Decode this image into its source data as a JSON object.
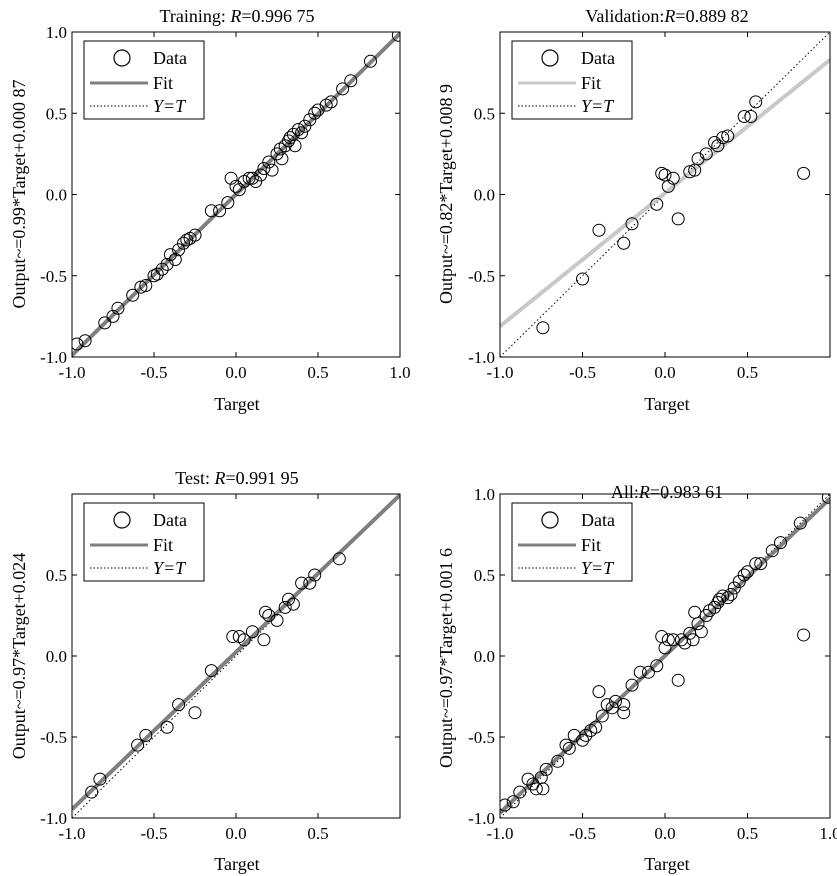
{
  "figure": {
    "xlabel": "Target"
  },
  "legend": {
    "data": "Data",
    "fit": "Fit",
    "yt": "Y=T"
  },
  "chart_data": [
    {
      "type": "scatter",
      "title_prefix": "Training: ",
      "title_r": "R",
      "title_value": "=0.996 75",
      "xlabel": "Target",
      "ylabel": "Output~=0.99*Target+0.000 87",
      "xlim": [
        -1.0,
        1.0
      ],
      "ylim": [
        -1.0,
        1.0
      ],
      "xticks": [
        "-1.0",
        "-0.5",
        "0.0",
        "0.5",
        "1.0"
      ],
      "yticks": [
        "-1.0",
        "-0.5",
        "0.0",
        "0.5",
        "1.0"
      ],
      "xtick_values": [
        -1.0,
        -0.5,
        0.0,
        0.5,
        1.0
      ],
      "ytick_values": [
        -1.0,
        -0.5,
        0.0,
        0.5,
        1.0
      ],
      "fit": {
        "slope": 0.99,
        "intercept": 0.00087,
        "color": "#7f7f7f"
      },
      "legend_position": "top-left",
      "grid": false,
      "points": [
        [
          -0.97,
          -0.92
        ],
        [
          -0.92,
          -0.9
        ],
        [
          -0.8,
          -0.79
        ],
        [
          -0.75,
          -0.75
        ],
        [
          -0.72,
          -0.7
        ],
        [
          -0.63,
          -0.62
        ],
        [
          -0.58,
          -0.57
        ],
        [
          -0.55,
          -0.56
        ],
        [
          -0.5,
          -0.5
        ],
        [
          -0.48,
          -0.49
        ],
        [
          -0.45,
          -0.46
        ],
        [
          -0.42,
          -0.43
        ],
        [
          -0.4,
          -0.37
        ],
        [
          -0.37,
          -0.4
        ],
        [
          -0.35,
          -0.34
        ],
        [
          -0.32,
          -0.3
        ],
        [
          -0.3,
          -0.28
        ],
        [
          -0.28,
          -0.27
        ],
        [
          -0.25,
          -0.25
        ],
        [
          -0.15,
          -0.1
        ],
        [
          -0.1,
          -0.1
        ],
        [
          -0.05,
          -0.05
        ],
        [
          -0.03,
          0.1
        ],
        [
          0.0,
          0.05
        ],
        [
          0.02,
          0.03
        ],
        [
          0.05,
          0.08
        ],
        [
          0.08,
          0.1
        ],
        [
          0.1,
          0.1
        ],
        [
          0.12,
          0.08
        ],
        [
          0.15,
          0.12
        ],
        [
          0.17,
          0.16
        ],
        [
          0.2,
          0.2
        ],
        [
          0.22,
          0.15
        ],
        [
          0.25,
          0.25
        ],
        [
          0.27,
          0.28
        ],
        [
          0.28,
          0.22
        ],
        [
          0.3,
          0.3
        ],
        [
          0.32,
          0.33
        ],
        [
          0.33,
          0.35
        ],
        [
          0.35,
          0.37
        ],
        [
          0.36,
          0.3
        ],
        [
          0.38,
          0.4
        ],
        [
          0.4,
          0.38
        ],
        [
          0.42,
          0.42
        ],
        [
          0.45,
          0.46
        ],
        [
          0.48,
          0.5
        ],
        [
          0.5,
          0.52
        ],
        [
          0.55,
          0.55
        ],
        [
          0.58,
          0.57
        ],
        [
          0.65,
          0.65
        ],
        [
          0.7,
          0.7
        ],
        [
          0.82,
          0.82
        ],
        [
          0.99,
          0.98
        ]
      ]
    },
    {
      "type": "scatter",
      "title_prefix": "Validation:",
      "title_r": "R",
      "title_value": "=0.889 82",
      "xlabel": "Target",
      "ylabel": "Output~=0.82*Target+0.008 9",
      "xlim": [
        -1.0,
        1.0
      ],
      "ylim": [
        -1.0,
        1.0
      ],
      "xticks": [
        "-1.0",
        "-0.5",
        "0.0",
        "0.5"
      ],
      "yticks": [
        "-1.0",
        "-0.5",
        "0.0",
        "0.5"
      ],
      "xtick_values": [
        -1.0,
        -0.5,
        0.0,
        0.5
      ],
      "ytick_values": [
        -1.0,
        -0.5,
        0.0,
        0.5
      ],
      "fit": {
        "slope": 0.82,
        "intercept": 0.0089,
        "color": "#c8c8c8"
      },
      "legend_position": "top-left",
      "grid": false,
      "points": [
        [
          -0.74,
          -0.82
        ],
        [
          -0.5,
          -0.52
        ],
        [
          -0.4,
          -0.22
        ],
        [
          -0.25,
          -0.3
        ],
        [
          -0.2,
          -0.18
        ],
        [
          -0.05,
          -0.06
        ],
        [
          -0.02,
          0.13
        ],
        [
          0.0,
          0.12
        ],
        [
          0.02,
          0.05
        ],
        [
          0.05,
          0.1
        ],
        [
          0.08,
          -0.15
        ],
        [
          0.15,
          0.14
        ],
        [
          0.18,
          0.15
        ],
        [
          0.2,
          0.22
        ],
        [
          0.25,
          0.25
        ],
        [
          0.3,
          0.32
        ],
        [
          0.32,
          0.3
        ],
        [
          0.35,
          0.35
        ],
        [
          0.38,
          0.36
        ],
        [
          0.48,
          0.48
        ],
        [
          0.52,
          0.48
        ],
        [
          0.55,
          0.57
        ],
        [
          0.84,
          0.13
        ]
      ]
    },
    {
      "type": "scatter",
      "title_prefix": "Test: ",
      "title_r": "R",
      "title_value": "=0.991 95",
      "xlabel": "Target",
      "ylabel": "Output~=0.97*Target+0.024",
      "xlim": [
        -1.0,
        1.0
      ],
      "ylim": [
        -1.0,
        1.0
      ],
      "xticks": [
        "-1.0",
        "-0.5",
        "0.0",
        "0.5"
      ],
      "yticks": [
        "-1.0",
        "-0.5",
        "0.0",
        "0.5"
      ],
      "xtick_values": [
        -1.0,
        -0.5,
        0.0,
        0.5
      ],
      "ytick_values": [
        -1.0,
        -0.5,
        0.0,
        0.5
      ],
      "fit": {
        "slope": 0.97,
        "intercept": 0.024,
        "color": "#7f7f7f"
      },
      "legend_position": "top-left",
      "grid": false,
      "points": [
        [
          -0.88,
          -0.84
        ],
        [
          -0.83,
          -0.76
        ],
        [
          -0.6,
          -0.55
        ],
        [
          -0.55,
          -0.49
        ],
        [
          -0.42,
          -0.44
        ],
        [
          -0.35,
          -0.3
        ],
        [
          -0.25,
          -0.35
        ],
        [
          -0.15,
          -0.09
        ],
        [
          -0.02,
          0.12
        ],
        [
          0.02,
          0.12
        ],
        [
          0.05,
          0.1
        ],
        [
          0.1,
          0.15
        ],
        [
          0.17,
          0.1
        ],
        [
          0.18,
          0.27
        ],
        [
          0.2,
          0.25
        ],
        [
          0.25,
          0.22
        ],
        [
          0.3,
          0.3
        ],
        [
          0.32,
          0.35
        ],
        [
          0.35,
          0.32
        ],
        [
          0.4,
          0.45
        ],
        [
          0.45,
          0.45
        ],
        [
          0.48,
          0.5
        ],
        [
          0.63,
          0.6
        ]
      ]
    },
    {
      "type": "scatter",
      "title_prefix": "All:",
      "title_r": "R",
      "title_value": "=0.983 61",
      "xlabel": "Target",
      "ylabel": "Output~=0.97*Target+0.001 6",
      "xlim": [
        -1.0,
        1.0
      ],
      "ylim": [
        -1.0,
        1.0
      ],
      "xticks": [
        "-1.0",
        "-0.5",
        "0.0",
        "0.5",
        "1.0"
      ],
      "yticks": [
        "-1.0",
        "-0.5",
        "0.0",
        "0.5",
        "1.0"
      ],
      "xtick_values": [
        -1.0,
        -0.5,
        0.0,
        0.5,
        1.0
      ],
      "ytick_values": [
        -1.0,
        -0.5,
        0.0,
        0.5,
        1.0
      ],
      "fit": {
        "slope": 0.97,
        "intercept": 0.0016,
        "color": "#7f7f7f"
      },
      "legend_position": "top-left",
      "grid": false,
      "points": [
        [
          -0.97,
          -0.92
        ],
        [
          -0.92,
          -0.9
        ],
        [
          -0.88,
          -0.84
        ],
        [
          -0.83,
          -0.76
        ],
        [
          -0.8,
          -0.79
        ],
        [
          -0.78,
          -0.82
        ],
        [
          -0.75,
          -0.75
        ],
        [
          -0.74,
          -0.82
        ],
        [
          -0.72,
          -0.7
        ],
        [
          -0.65,
          -0.65
        ],
        [
          -0.6,
          -0.55
        ],
        [
          -0.58,
          -0.57
        ],
        [
          -0.55,
          -0.49
        ],
        [
          -0.5,
          -0.52
        ],
        [
          -0.48,
          -0.49
        ],
        [
          -0.45,
          -0.46
        ],
        [
          -0.42,
          -0.44
        ],
        [
          -0.4,
          -0.22
        ],
        [
          -0.38,
          -0.37
        ],
        [
          -0.35,
          -0.3
        ],
        [
          -0.32,
          -0.32
        ],
        [
          -0.3,
          -0.28
        ],
        [
          -0.25,
          -0.35
        ],
        [
          -0.25,
          -0.3
        ],
        [
          -0.2,
          -0.18
        ],
        [
          -0.15,
          -0.1
        ],
        [
          -0.1,
          -0.1
        ],
        [
          -0.05,
          -0.06
        ],
        [
          -0.02,
          0.12
        ],
        [
          0.0,
          0.05
        ],
        [
          0.02,
          0.1
        ],
        [
          0.05,
          0.1
        ],
        [
          0.08,
          -0.15
        ],
        [
          0.1,
          0.1
        ],
        [
          0.12,
          0.08
        ],
        [
          0.15,
          0.14
        ],
        [
          0.17,
          0.1
        ],
        [
          0.18,
          0.27
        ],
        [
          0.2,
          0.2
        ],
        [
          0.22,
          0.15
        ],
        [
          0.25,
          0.25
        ],
        [
          0.27,
          0.28
        ],
        [
          0.3,
          0.3
        ],
        [
          0.32,
          0.33
        ],
        [
          0.33,
          0.35
        ],
        [
          0.35,
          0.37
        ],
        [
          0.38,
          0.36
        ],
        [
          0.4,
          0.38
        ],
        [
          0.42,
          0.42
        ],
        [
          0.45,
          0.46
        ],
        [
          0.48,
          0.5
        ],
        [
          0.5,
          0.52
        ],
        [
          0.55,
          0.57
        ],
        [
          0.58,
          0.57
        ],
        [
          0.65,
          0.65
        ],
        [
          0.7,
          0.7
        ],
        [
          0.82,
          0.82
        ],
        [
          0.84,
          0.13
        ],
        [
          0.99,
          0.98
        ]
      ]
    }
  ]
}
